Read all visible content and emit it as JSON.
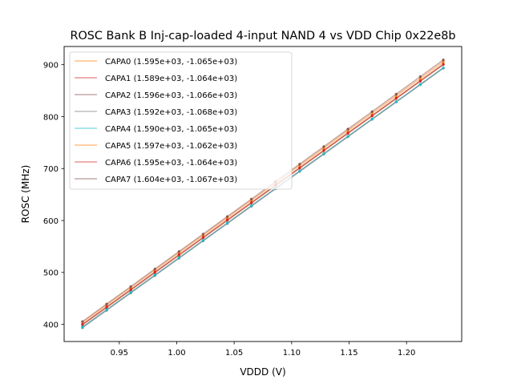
{
  "chart_data": {
    "type": "line",
    "title": "ROSC Bank B Inj-cap-loaded 4-input NAND 4 vs VDD Chip 0x22e8b",
    "xlabel": "VDDD (V)",
    "ylabel": "ROSC (MHz)",
    "xlim": [
      0.902,
      1.248
    ],
    "ylim": [
      367,
      935
    ],
    "xticks": [
      0.95,
      1.0,
      1.05,
      1.1,
      1.15,
      1.2
    ],
    "xtick_labels": [
      "0.95",
      "1.00",
      "1.05",
      "1.10",
      "1.15",
      "1.20"
    ],
    "yticks": [
      400,
      500,
      600,
      700,
      800,
      900
    ],
    "ytick_labels": [
      "400",
      "500",
      "600",
      "700",
      "800",
      "900"
    ],
    "grid": false,
    "legend_placement": "top-left",
    "x": [
      0.918,
      0.939,
      0.96,
      0.981,
      1.002,
      1.023,
      1.044,
      1.065,
      1.086,
      1.107,
      1.128,
      1.149,
      1.17,
      1.191,
      1.212,
      1.232
    ],
    "series": [
      {
        "name": "CAPA0",
        "label": "CAPA0 (1.595e+03, -1.065e+03)",
        "slope": 1595,
        "intercept": -1065,
        "color": "#ff7f0e"
      },
      {
        "name": "CAPA1",
        "label": "CAPA1 (1.589e+03, -1.064e+03)",
        "slope": 1589,
        "intercept": -1064,
        "color": "#d62728"
      },
      {
        "name": "CAPA2",
        "label": "CAPA2 (1.596e+03, -1.066e+03)",
        "slope": 1596,
        "intercept": -1066,
        "color": "#8c564b"
      },
      {
        "name": "CAPA3",
        "label": "CAPA3 (1.592e+03, -1.068e+03)",
        "slope": 1592,
        "intercept": -1068,
        "color": "#7f7f7f"
      },
      {
        "name": "CAPA4",
        "label": "CAPA4 (1.590e+03, -1.065e+03)",
        "slope": 1590,
        "intercept": -1065,
        "color": "#17becf"
      },
      {
        "name": "CAPA5",
        "label": "CAPA5 (1.597e+03, -1.062e+03)",
        "slope": 1597,
        "intercept": -1062,
        "color": "#ff7f0e"
      },
      {
        "name": "CAPA6",
        "label": "CAPA6 (1.595e+03, -1.064e+03)",
        "slope": 1595,
        "intercept": -1064,
        "color": "#d62728"
      },
      {
        "name": "CAPA7",
        "label": "CAPA7 (1.604e+03, -1.067e+03)",
        "slope": 1604,
        "intercept": -1067,
        "color": "#8c564b"
      }
    ]
  }
}
